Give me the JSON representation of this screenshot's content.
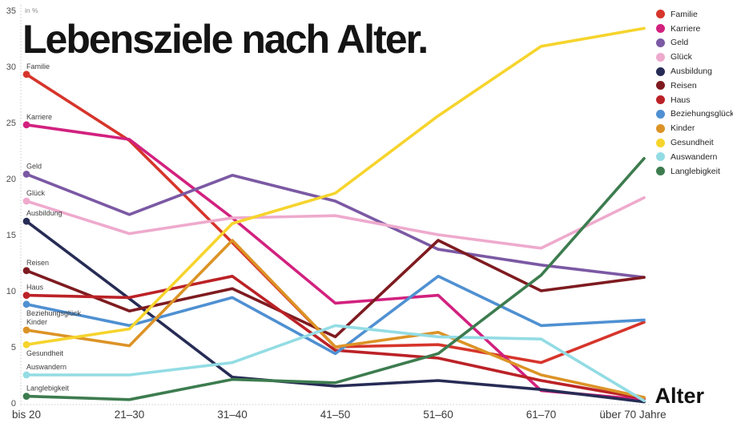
{
  "title": "Lebensziele nach Alter.",
  "y_axis": {
    "unit_label": "in %",
    "ticks": [
      0,
      5,
      10,
      15,
      20,
      25,
      30,
      35
    ]
  },
  "x_axis": {
    "label": "Alter"
  },
  "chart_data": {
    "type": "line",
    "categories": [
      "bis 20",
      "21–30",
      "31–40",
      "41–50",
      "51–60",
      "61–70",
      "über 70 Jahre"
    ],
    "ylim": [
      0,
      35
    ],
    "grid": false,
    "legend_position": "top-right",
    "series": [
      {
        "name": "Familie",
        "color": "#d6352b",
        "values": [
          29.3,
          23.4,
          14.3,
          5.0,
          5.2,
          3.6,
          7.2
        ]
      },
      {
        "name": "Karriere",
        "color": "#d2217f",
        "values": [
          24.8,
          23.5,
          16.5,
          8.9,
          9.6,
          1.1,
          0.3
        ]
      },
      {
        "name": "Geld",
        "color": "#7b59a4",
        "values": [
          20.4,
          16.8,
          20.3,
          18.0,
          13.7,
          12.3,
          11.2
        ]
      },
      {
        "name": "Glück",
        "color": "#eeaacd",
        "values": [
          18.0,
          15.1,
          16.5,
          16.7,
          15.0,
          13.8,
          18.3
        ]
      },
      {
        "name": "Ausbildung",
        "color": "#272c55",
        "values": [
          16.2,
          9.3,
          2.3,
          1.5,
          2.0,
          1.2,
          0.1
        ]
      },
      {
        "name": "Reisen",
        "color": "#7e1b20",
        "values": [
          11.8,
          8.2,
          10.2,
          5.9,
          14.5,
          10.0,
          11.2
        ]
      },
      {
        "name": "Haus",
        "color": "#bb2227",
        "values": [
          9.6,
          9.4,
          11.3,
          4.7,
          4.0,
          2.0,
          0.4
        ]
      },
      {
        "name": "Beziehungsglück",
        "color": "#4f90d2",
        "values": [
          8.8,
          6.9,
          9.4,
          4.4,
          11.3,
          6.9,
          7.4
        ]
      },
      {
        "name": "Kinder",
        "color": "#dc9326",
        "values": [
          6.5,
          5.1,
          14.5,
          5.0,
          6.3,
          2.5,
          0.5
        ]
      },
      {
        "name": "Gesundheit",
        "color": "#f6d42d",
        "values": [
          5.2,
          6.6,
          16.0,
          18.7,
          25.6,
          31.8,
          33.4
        ]
      },
      {
        "name": "Auswandern",
        "color": "#93dce4",
        "values": [
          2.5,
          2.5,
          3.6,
          6.9,
          5.9,
          5.7,
          0.2
        ]
      },
      {
        "name": "Langlebigkeit",
        "color": "#3d7c4f",
        "values": [
          0.6,
          0.3,
          2.1,
          1.8,
          4.4,
          11.4,
          21.8
        ]
      }
    ]
  }
}
